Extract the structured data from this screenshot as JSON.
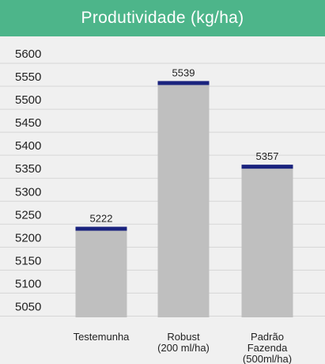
{
  "colors": {
    "header_bg": "#4db58a",
    "bar_fill": "#bfbfbf",
    "bar_cap": "#1a237e",
    "grid": "#d6d6d6",
    "text": "#222222",
    "background": "#f0f0f0"
  },
  "chart_data": {
    "type": "bar",
    "title": "Produtividade (kg/ha)",
    "categories": [
      [
        "Testemunha"
      ],
      [
        "Robust",
        "(200 ml/ha)"
      ],
      [
        "Padrão",
        "Fazenda",
        "(500ml/ha)"
      ]
    ],
    "values": [
      5222,
      5539,
      5357
    ],
    "data_labels": [
      "5222",
      "5539",
      "5357"
    ],
    "yticks": [
      5050,
      5100,
      5150,
      5200,
      5250,
      5300,
      5350,
      5400,
      5450,
      5500,
      5550,
      5600
    ],
    "ylim": [
      5025,
      5600
    ],
    "grid": true,
    "legend": "none"
  }
}
